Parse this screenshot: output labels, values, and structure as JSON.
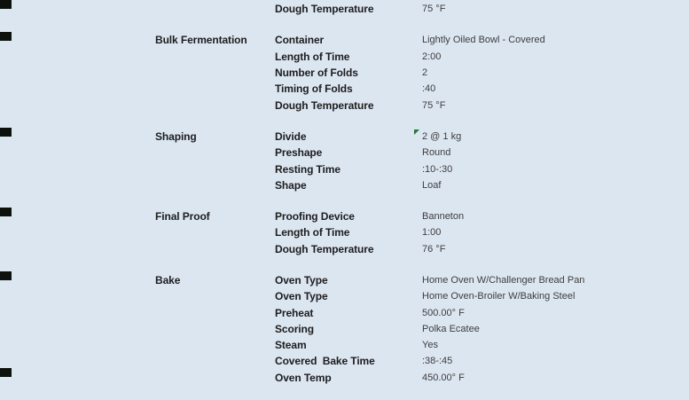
{
  "colors": {
    "background": "#dce6f1",
    "label_text": "#1d1d1d",
    "value_text": "#3d3d3d",
    "comment_flag_green": "#1e7a34",
    "edge_marker_dark": "#0c110c"
  },
  "icons": {
    "comment_flag": "comment-flag-icon",
    "edge_marker": "edge-artifact-marker"
  },
  "sections": [
    {
      "name": "",
      "rows": [
        {
          "label": "Dough Temperature",
          "value": "75 °F"
        }
      ]
    },
    {
      "name": "Bulk Fermentation",
      "rows": [
        {
          "label": "Container",
          "value": "Lightly Oiled Bowl - Covered"
        },
        {
          "label": "Length of Time",
          "value": "2:00"
        },
        {
          "label": "Number of Folds",
          "value": "2"
        },
        {
          "label": "Timing of Folds",
          "value": ":40"
        },
        {
          "label": "Dough Temperature",
          "value": "75 °F"
        }
      ]
    },
    {
      "name": "Shaping",
      "rows": [
        {
          "label": "Divide",
          "value": "2 @ 1 kg",
          "flag": true
        },
        {
          "label": "Preshape",
          "value": "Round"
        },
        {
          "label": "Resting Time",
          "value": ":10-:30"
        },
        {
          "label": "Shape",
          "value": "Loaf"
        }
      ]
    },
    {
      "name": "Final Proof",
      "rows": [
        {
          "label": "Proofing Device",
          "value": "Banneton"
        },
        {
          "label": "Length of Time",
          "value": "1:00"
        },
        {
          "label": "Dough Temperature",
          "value": "76 °F"
        }
      ]
    },
    {
      "name": "Bake",
      "rows": [
        {
          "label": "Oven Type",
          "value": "Home Oven W/Challenger Bread Pan"
        },
        {
          "label": "Oven Type",
          "value": "Home Oven-Broiler W/Baking Steel"
        },
        {
          "label": "Preheat",
          "value": "500.00° F"
        },
        {
          "label": "Scoring",
          "value": "Polka Ecatee"
        },
        {
          "label": "Steam",
          "value": "Yes"
        },
        {
          "label": "Covered  Bake Time",
          "value": ":38-:45"
        },
        {
          "label": "Oven Temp",
          "value": "450.00° F"
        }
      ]
    }
  ]
}
